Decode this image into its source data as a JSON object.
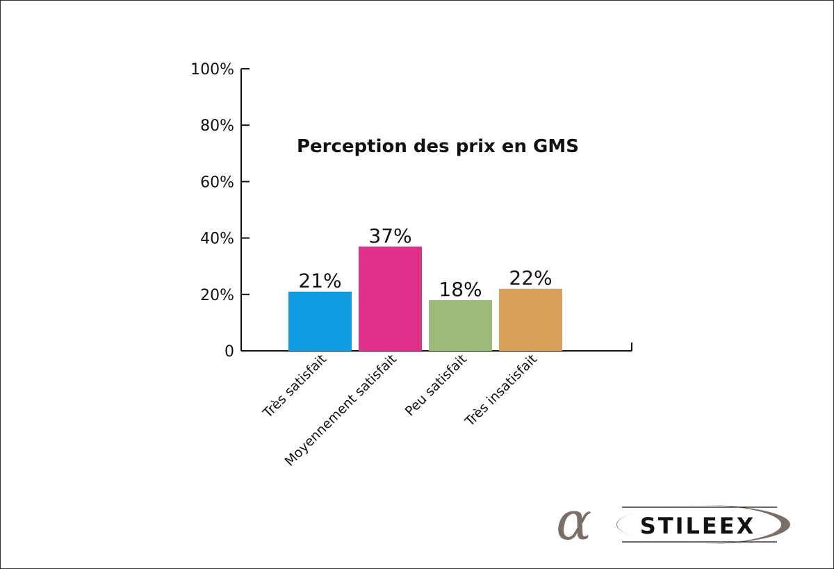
{
  "chart_data": {
    "type": "bar",
    "title": "Perception des prix en GMS",
    "categories": [
      "Très satisfait",
      "Moyennement satisfait",
      "Peu satisfait",
      "Très insatisfait"
    ],
    "values": [
      21,
      37,
      18,
      22
    ],
    "value_labels": [
      "21%",
      "37%",
      "18%",
      "22%"
    ],
    "colors": [
      "#0e9de0",
      "#e0318a",
      "#9cba79",
      "#d9a05a"
    ],
    "ylim": [
      0,
      100
    ],
    "yticks": [
      0,
      20,
      40,
      60,
      80,
      100
    ],
    "ytick_labels": [
      "0",
      "20%",
      "40%",
      "60%",
      "80%",
      "100%"
    ],
    "xlabel": "",
    "ylabel": "",
    "grid": false,
    "legend": "none"
  },
  "logo": {
    "text": "STILEEX",
    "symbol": "α",
    "symbol_color": "#7a6f68",
    "text_color": "#111111"
  }
}
